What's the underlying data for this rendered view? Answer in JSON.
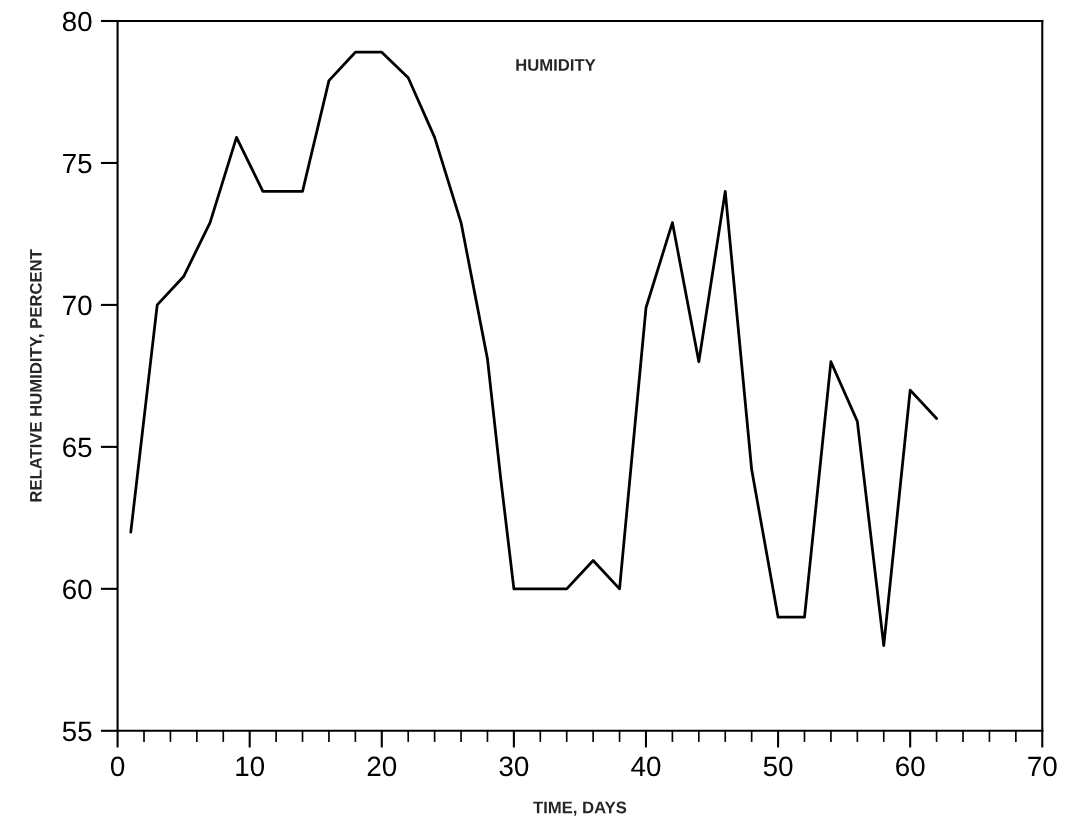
{
  "chart_data": {
    "type": "line",
    "xlabel": "TIME, DAYS",
    "ylabel": "RELATIVE HUMIDITY, PERCENT",
    "annotations": [
      "HUMIDITY"
    ],
    "xlim": [
      0,
      70
    ],
    "xticks": [
      0,
      10,
      20,
      30,
      40,
      50,
      60,
      70
    ],
    "ylim": [
      55,
      80
    ],
    "yticks": [
      55,
      60,
      65,
      70,
      75,
      80
    ],
    "grid": false,
    "legend": false,
    "marker": "none",
    "line_style": "solid",
    "series": [
      {
        "color": "#000000",
        "x": [
          1,
          3,
          5,
          7,
          9,
          11,
          14,
          16,
          18,
          20,
          22,
          24,
          26,
          28,
          29,
          30,
          34,
          36,
          38,
          40,
          42,
          44,
          46,
          48,
          50,
          52,
          54,
          56,
          58,
          60,
          62
        ],
        "values": [
          62,
          70,
          71,
          72.9,
          75.9,
          74,
          74,
          77.9,
          78.9,
          78.9,
          78,
          75.9,
          72.9,
          68.1,
          63.9,
          60,
          60,
          61,
          60,
          69.9,
          72.9,
          68,
          74,
          64.2,
          59,
          59,
          68,
          65.9,
          58,
          67,
          66
        ]
      }
    ]
  }
}
